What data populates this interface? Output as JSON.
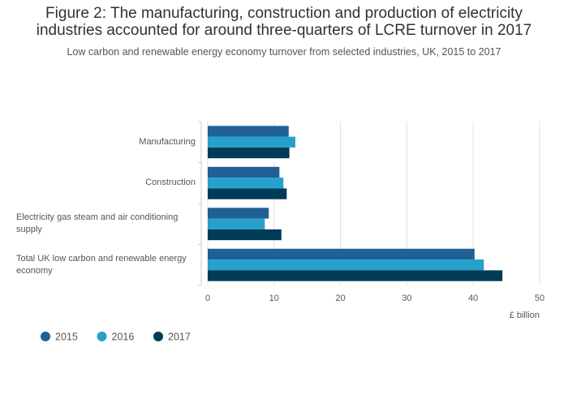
{
  "chart_data": {
    "type": "hbar",
    "title": "Figure 2: The manufacturing, construction and production of electricity industries accounted for around three-quarters of LCRE turnover in 2017",
    "subtitle": "Low carbon and renewable energy economy turnover from selected industries, UK, 2015 to 2017",
    "x_label": "£ billion",
    "categories": [
      "Manufacturing",
      "Construction",
      "Electricity gas steam and air conditioning supply",
      "Total UK low carbon and renewable energy economy"
    ],
    "series": [
      {
        "name": "2015",
        "color": "#206095",
        "values": [
          12.2,
          10.8,
          9.2,
          40.2
        ]
      },
      {
        "name": "2016",
        "color": "#27a0cc",
        "values": [
          13.2,
          11.4,
          8.6,
          41.6
        ]
      },
      {
        "name": "2017",
        "color": "#003c57",
        "values": [
          12.3,
          11.9,
          11.1,
          44.4
        ]
      }
    ],
    "xlim": [
      0,
      50
    ],
    "xticks": [
      0,
      10,
      20,
      30,
      40,
      50
    ],
    "grid": true,
    "legend": "bottom"
  }
}
